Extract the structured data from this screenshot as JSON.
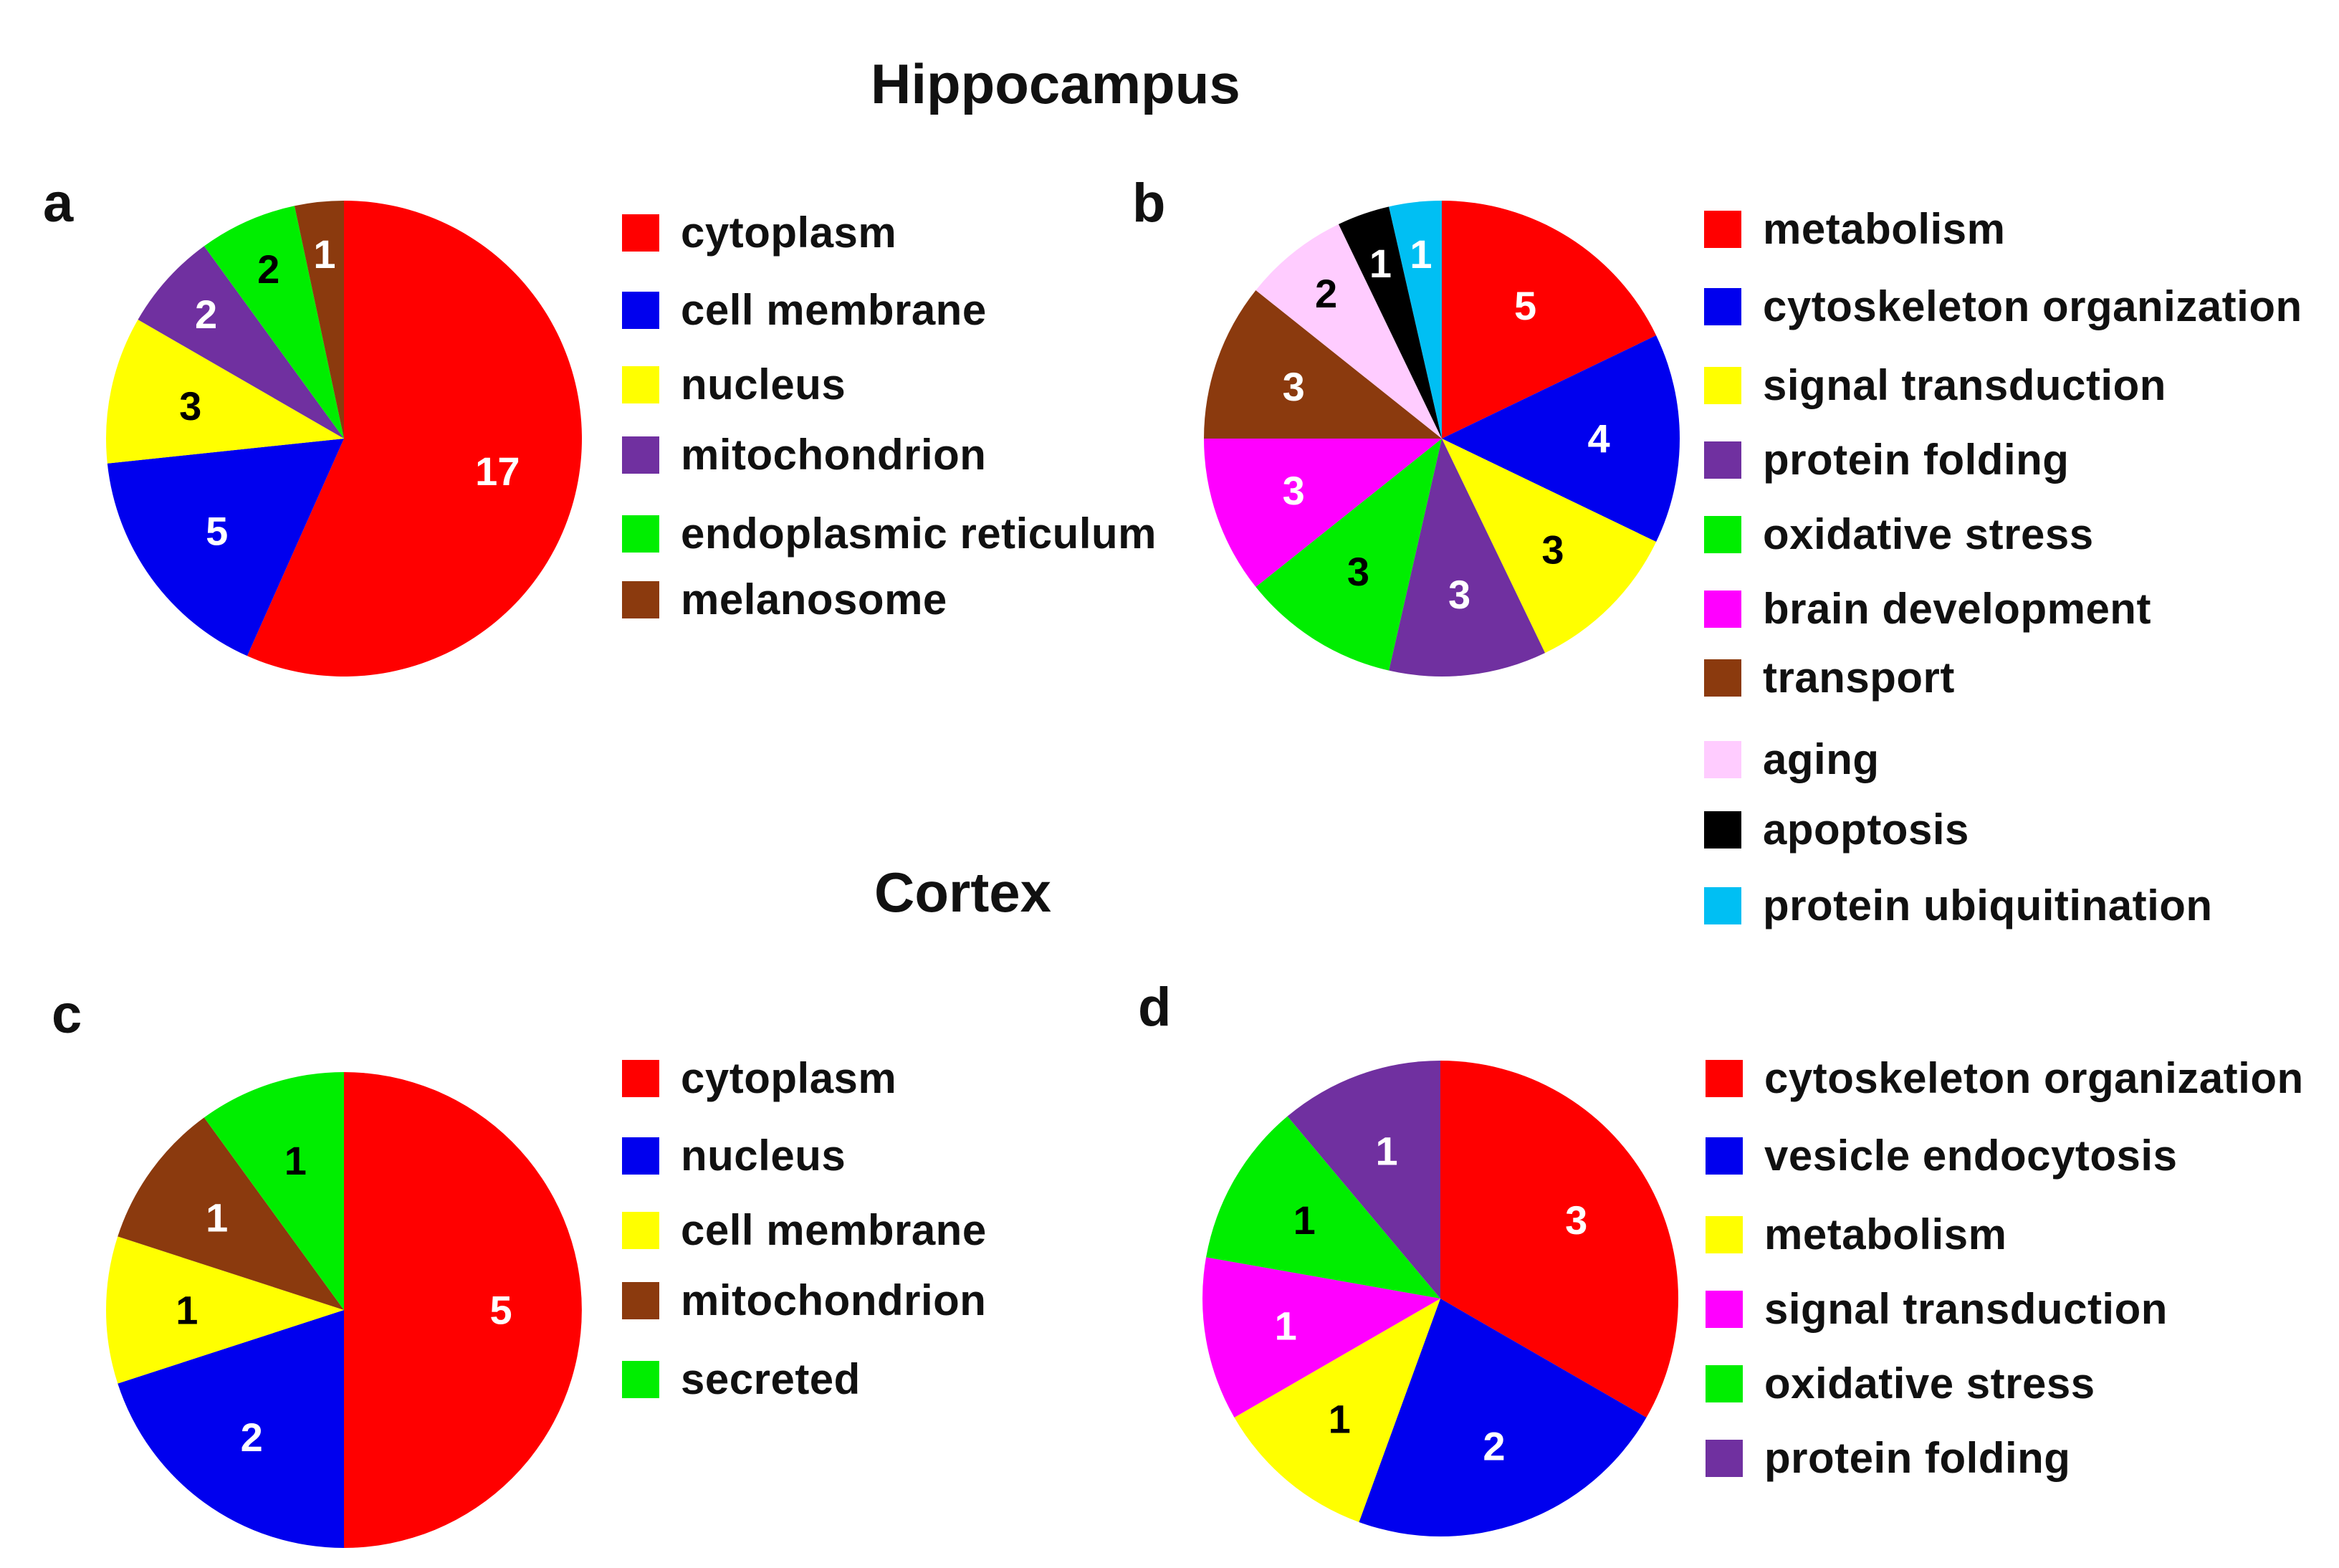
{
  "titles": {
    "top": "Hippocampus",
    "bottom": "Cortex"
  },
  "chart_data": [
    {
      "id": "a",
      "type": "pie",
      "panel": "a",
      "section": "Hippocampus",
      "labels": [
        "cytoplasm",
        "cell membrane",
        "nucleus",
        "mitochondrion",
        "endoplasmic reticulum",
        "melanosome"
      ],
      "values": [
        17,
        5,
        3,
        2,
        2,
        1
      ],
      "colors": [
        "#ff0000",
        "#0000ee",
        "#ffff00",
        "#7030a0",
        "#00ee00",
        "#8b3a0e"
      ],
      "label_colors": [
        "#ffffff",
        "#ffffff",
        "#000000",
        "#ffffff",
        "#000000",
        "#ffffff"
      ]
    },
    {
      "id": "b",
      "type": "pie",
      "panel": "b",
      "section": "Hippocampus",
      "labels": [
        "metabolism",
        "cytoskeleton organization",
        "signal transduction",
        "protein folding",
        "oxidative stress",
        "brain development",
        "transport",
        "aging",
        "apoptosis",
        "protein ubiquitination"
      ],
      "values": [
        5,
        4,
        3,
        3,
        3,
        3,
        3,
        2,
        1,
        1
      ],
      "colors": [
        "#ff0000",
        "#0000ee",
        "#ffff00",
        "#7030a0",
        "#00ee00",
        "#ff00ff",
        "#8b3a0e",
        "#ffccff",
        "#000000",
        "#00bff3"
      ],
      "label_colors": [
        "#ffffff",
        "#ffffff",
        "#000000",
        "#ffffff",
        "#000000",
        "#ffffff",
        "#ffffff",
        "#000000",
        "#ffffff",
        "#ffffff"
      ]
    },
    {
      "id": "c",
      "type": "pie",
      "panel": "c",
      "section": "Cortex",
      "labels": [
        "cytoplasm",
        "nucleus",
        "cell membrane",
        "mitochondrion",
        "secreted"
      ],
      "values": [
        5,
        2,
        1,
        1,
        1
      ],
      "colors": [
        "#ff0000",
        "#0000ee",
        "#ffff00",
        "#8b3a0e",
        "#00ee00"
      ],
      "label_colors": [
        "#ffffff",
        "#ffffff",
        "#000000",
        "#ffffff",
        "#000000"
      ]
    },
    {
      "id": "d",
      "type": "pie",
      "panel": "d",
      "section": "Cortex",
      "labels": [
        "cytoskeleton organization",
        "vesicle endocytosis",
        "metabolism",
        "signal transduction",
        "oxidative stress",
        "protein folding"
      ],
      "values": [
        3,
        2,
        1,
        1,
        1,
        1
      ],
      "colors": [
        "#ff0000",
        "#0000ee",
        "#ffff00",
        "#ff00ff",
        "#00ee00",
        "#7030a0"
      ],
      "label_colors": [
        "#ffffff",
        "#ffffff",
        "#000000",
        "#ffffff",
        "#000000",
        "#ffffff"
      ]
    }
  ]
}
